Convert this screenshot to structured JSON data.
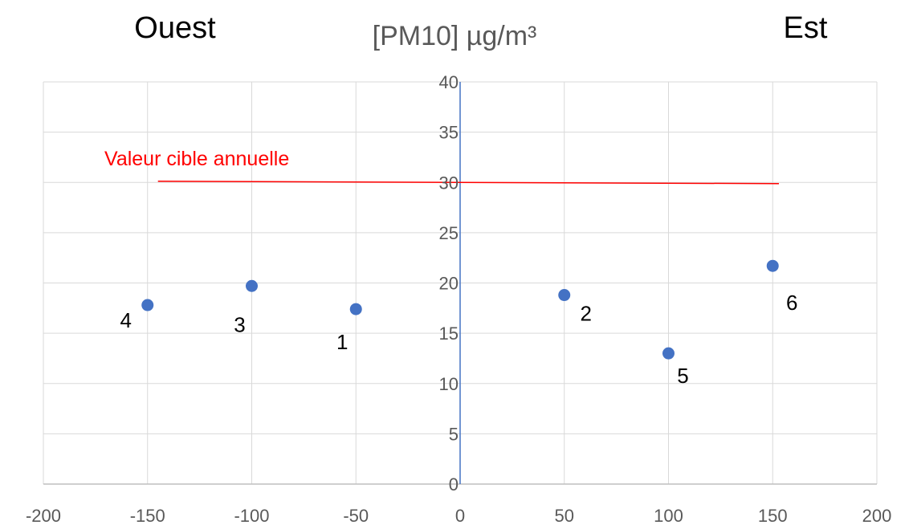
{
  "chart_data": {
    "type": "scatter",
    "title": "[PM10] µg/m³",
    "left_label": "Ouest",
    "right_label": "Est",
    "xlim": [
      -200,
      200
    ],
    "ylim": [
      0,
      40
    ],
    "x_ticks": [
      -200,
      -150,
      -100,
      -50,
      0,
      50,
      100,
      150,
      200
    ],
    "y_ticks": [
      0,
      5,
      10,
      15,
      20,
      25,
      30,
      35,
      40
    ],
    "grid": true,
    "point_color": "#4472c4",
    "points": [
      {
        "label": "1",
        "x": -50,
        "y": 17.4
      },
      {
        "label": "2",
        "x": 50,
        "y": 18.8
      },
      {
        "label": "3",
        "x": -100,
        "y": 19.7
      },
      {
        "label": "4",
        "x": -150,
        "y": 17.8
      },
      {
        "label": "5",
        "x": 100,
        "y": 13.0
      },
      {
        "label": "6",
        "x": 150,
        "y": 21.7
      }
    ],
    "target_line": {
      "label": "Valeur cible annuelle",
      "y": 30,
      "x_start": -145,
      "x_end": 153,
      "color": "#ff0000"
    }
  }
}
